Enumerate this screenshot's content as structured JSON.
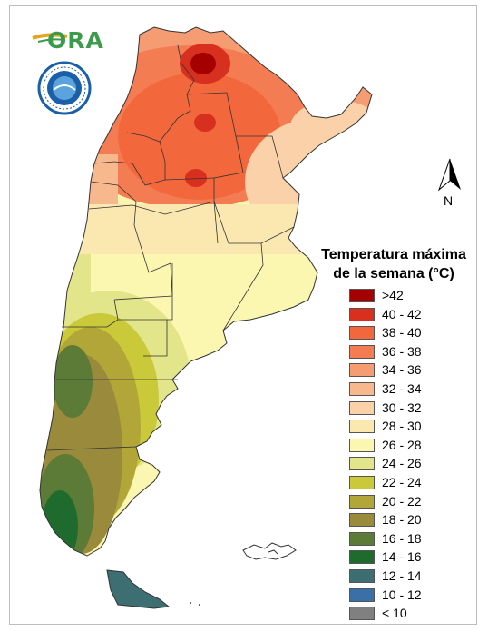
{
  "legend": {
    "title_line1": "Temperatura máxima",
    "title_line2": "de la semana (°C)",
    "items": [
      {
        "label": ">42",
        "color": "#a50000"
      },
      {
        "label": "40 - 42",
        "color": "#d7301f"
      },
      {
        "label": "38 - 40",
        "color": "#f2683c"
      },
      {
        "label": "36 - 38",
        "color": "#f47c52"
      },
      {
        "label": "34 - 36",
        "color": "#f69c72"
      },
      {
        "label": "32 - 34",
        "color": "#f8b88d"
      },
      {
        "label": "30 - 32",
        "color": "#fad1a8"
      },
      {
        "label": "28 - 30",
        "color": "#fbe8b0"
      },
      {
        "label": "26 - 28",
        "color": "#fbf6b0"
      },
      {
        "label": "24 - 26",
        "color": "#e3e58a"
      },
      {
        "label": "22 - 24",
        "color": "#c9c93a"
      },
      {
        "label": "20 - 22",
        "color": "#b3a638"
      },
      {
        "label": "18 - 20",
        "color": "#9a8a3c"
      },
      {
        "label": "16 - 18",
        "color": "#5b7b37"
      },
      {
        "label": "14 - 16",
        "color": "#1f6b2d"
      },
      {
        "label": "12 - 14",
        "color": "#3d6e72"
      },
      {
        "label": "10 - 12",
        "color": "#3a6fa8"
      },
      {
        "label": "< 10",
        "color": "#808080"
      }
    ]
  },
  "logo": {
    "text": "ORA"
  },
  "north_arrow": {
    "label": "N"
  }
}
